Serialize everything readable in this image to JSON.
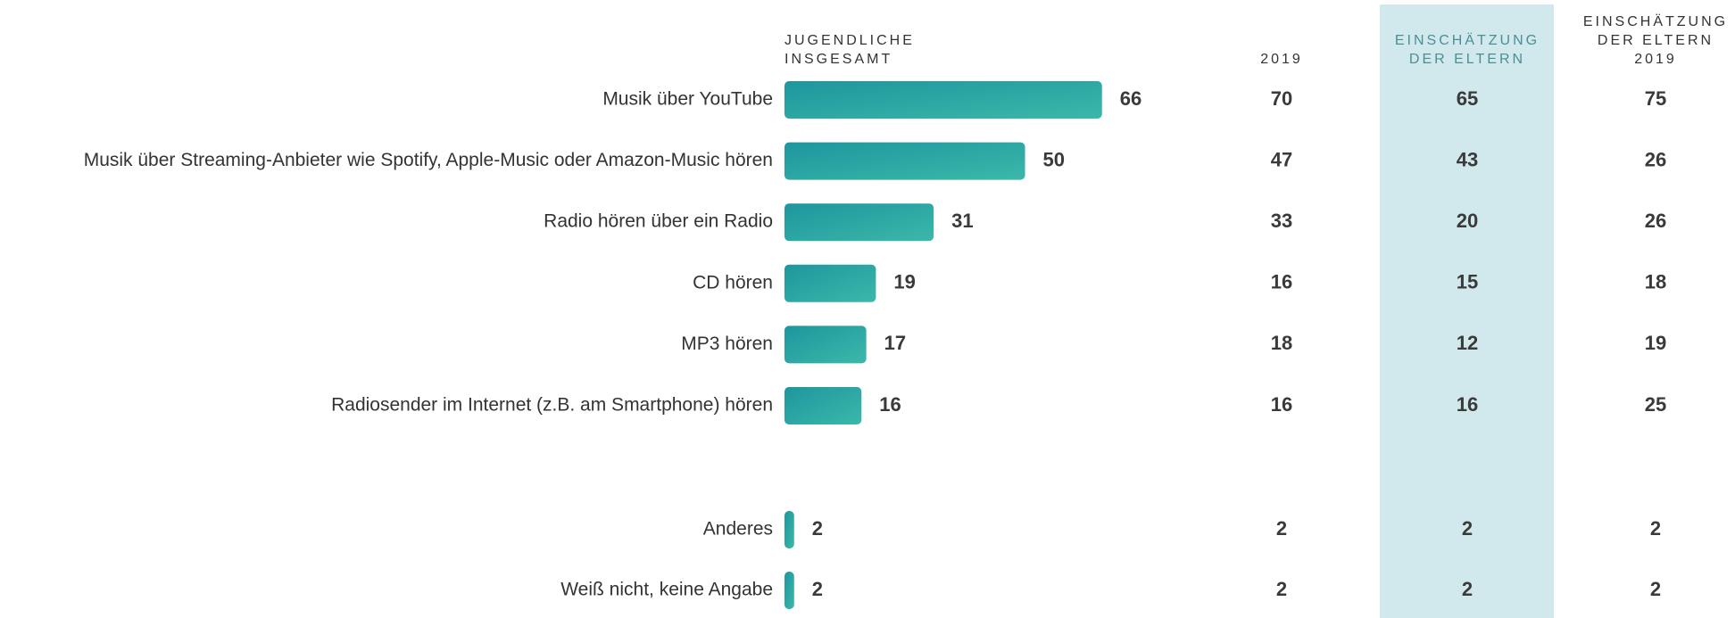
{
  "chart_data": {
    "type": "bar",
    "column_headers": [
      [
        "JUGENDLICHE",
        "INSGESAMT"
      ],
      [
        "2019"
      ],
      [
        "EINSCHÄTZUNG",
        "DER ELTERN"
      ],
      [
        "EINSCHÄTZUNG",
        "DER ELTERN",
        "2019"
      ]
    ],
    "categories": [
      "Musik über YouTube",
      "Musik über Streaming-Anbieter wie  Spotify, Apple-Music oder Amazon-Music  hören",
      "Radio hören über ein Radio",
      "CD hören",
      "MP3 hören",
      "Radiosender im Internet (z.B. am Smartphone) hören",
      "Anderes",
      "Weiß nicht, keine Angabe"
    ],
    "series": [
      {
        "color": "#1e969e",
        "values": [
          66,
          50,
          31,
          19,
          17,
          16,
          2,
          2
        ]
      },
      {
        "values": [
          70,
          47,
          33,
          16,
          18,
          16,
          2,
          2
        ]
      },
      {
        "values": [
          65,
          43,
          20,
          15,
          12,
          16,
          2,
          2
        ]
      },
      {
        "values": [
          75,
          26,
          26,
          18,
          19,
          25,
          2,
          2
        ]
      }
    ],
    "highlight_color": "#d1e9ec"
  }
}
